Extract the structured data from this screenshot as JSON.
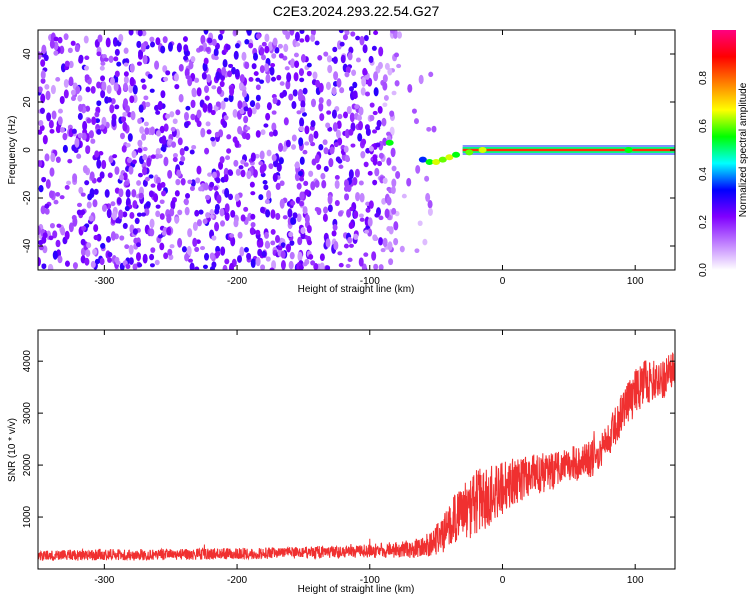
{
  "figure": {
    "title": "C2E3.2024.293.22.54.G27"
  },
  "chart_data": [
    {
      "type": "heatmap",
      "xlabel": "Height of straight line (km)",
      "ylabel": "Frequency (Hz)",
      "xlim": [
        -350,
        130
      ],
      "ylim": [
        -50,
        50
      ],
      "xticks": [
        -300,
        -200,
        -100,
        0,
        100
      ],
      "yticks": [
        -40,
        -20,
        0,
        20,
        40
      ],
      "colorbar": {
        "label": "Normalized spectral amplitude",
        "range": [
          0,
          1
        ],
        "ticks": [
          "0.0",
          "0.2",
          "0.4",
          "0.6",
          "0.8"
        ],
        "tick_values": [
          0.0,
          0.2,
          0.4,
          0.6,
          0.8
        ],
        "colors": [
          "#ffffff",
          "#c080ff",
          "#8000ff",
          "#0000ff",
          "#00ffff",
          "#00ff00",
          "#ffff00",
          "#ff8000",
          "#ff0000",
          "#ff0080"
        ]
      },
      "noise_region_x": [
        -350,
        -50
      ],
      "carrier_line": {
        "freq": 0,
        "x_start": -30,
        "x_end": 130,
        "amplitude": 0.85
      },
      "signal_points": [
        {
          "x": -85,
          "y": 3,
          "amplitude": 0.55
        },
        {
          "x": -60,
          "y": -4,
          "amplitude": 0.35
        },
        {
          "x": -55,
          "y": -5,
          "amplitude": 0.55
        },
        {
          "x": -50,
          "y": -5,
          "amplitude": 0.65
        },
        {
          "x": -45,
          "y": -4,
          "amplitude": 0.6
        },
        {
          "x": -40,
          "y": -3,
          "amplitude": 0.65
        },
        {
          "x": -35,
          "y": -2,
          "amplitude": 0.55
        },
        {
          "x": -25,
          "y": -1,
          "amplitude": 0.6
        },
        {
          "x": -15,
          "y": 0,
          "amplitude": 0.65
        },
        {
          "x": 95,
          "y": 0,
          "amplitude": 0.55
        }
      ]
    },
    {
      "type": "line",
      "xlabel": "Height of straight line (km)",
      "ylabel": "SNR (10 * v/v)",
      "xlim": [
        -350,
        130
      ],
      "ylim": [
        0,
        4600
      ],
      "xticks": [
        -300,
        -200,
        -100,
        0,
        100
      ],
      "yticks": [
        1000,
        2000,
        3000,
        4000
      ],
      "series": [
        {
          "color": "#f03030",
          "x": [
            -350,
            -320,
            -300,
            -280,
            -260,
            -240,
            -220,
            -200,
            -180,
            -160,
            -140,
            -120,
            -100,
            -90,
            -80,
            -70,
            -60,
            -50,
            -40,
            -30,
            -20,
            -10,
            0,
            10,
            20,
            30,
            40,
            50,
            60,
            70,
            80,
            90,
            100,
            110,
            120,
            130
          ],
          "y": [
            250,
            270,
            280,
            270,
            280,
            280,
            290,
            300,
            300,
            310,
            320,
            330,
            350,
            350,
            380,
            380,
            420,
            550,
            800,
            1100,
            1250,
            1400,
            1550,
            1700,
            1800,
            1850,
            1900,
            2000,
            2050,
            2150,
            2500,
            3000,
            3400,
            3650,
            3600,
            3900
          ],
          "noise": [
            100,
            110,
            110,
            110,
            110,
            110,
            110,
            110,
            110,
            110,
            120,
            120,
            130,
            150,
            160,
            170,
            200,
            280,
            450,
            600,
            650,
            600,
            500,
            450,
            400,
            380,
            360,
            350,
            350,
            350,
            350,
            400,
            450,
            450,
            400,
            350
          ]
        }
      ]
    }
  ]
}
